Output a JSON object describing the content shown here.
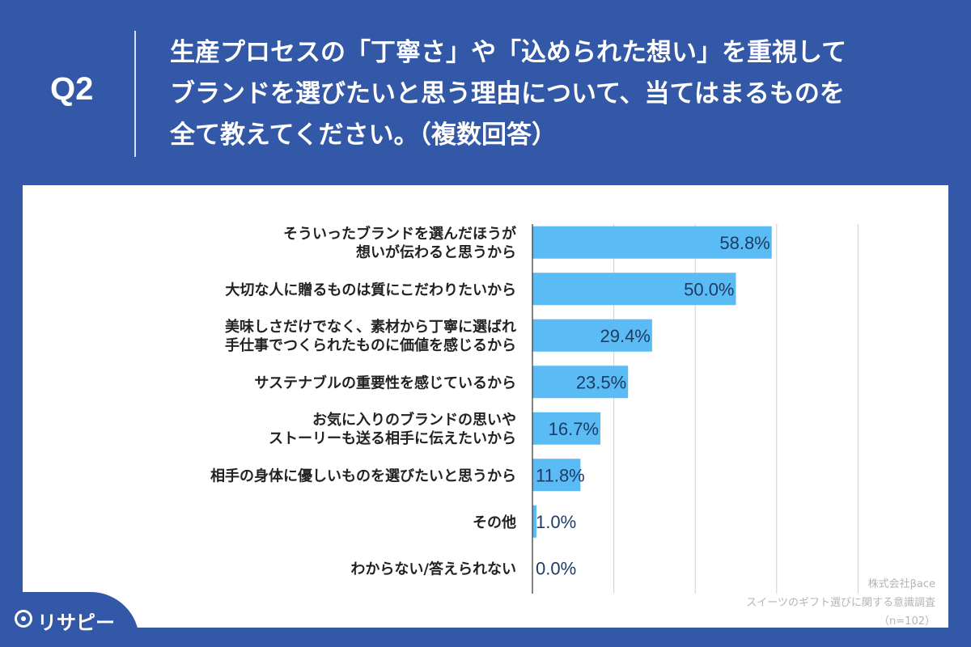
{
  "question": {
    "number": "Q2",
    "lines": [
      "生産プロセスの「丁寧さ」や「込められた想い」を重視して",
      "ブランドを選びたいと思う理由について、当てはまるものを",
      "全て教えてください。（複数回答）"
    ]
  },
  "colors": {
    "bar": "#5bbcf5",
    "header": "#3358a7",
    "grid": "#d0d0d0"
  },
  "chart_data": {
    "type": "bar",
    "orientation": "horizontal",
    "categories": [
      [
        "そういったブランドを選んだほうが",
        "想いが伝わると思うから"
      ],
      [
        "大切な人に贈るものは質にこだわりたいから"
      ],
      [
        "美味しさだけでなく、素材から丁寧に選ばれ",
        "手仕事でつくられたものに価値を感じるから"
      ],
      [
        "サステナブルの重要性を感じているから"
      ],
      [
        "お気に入りのブランドの思いや",
        "ストーリーも送る相手に伝えたいから"
      ],
      [
        "相手の身体に優しいものを選びたいと思うから"
      ],
      [
        "その他"
      ],
      [
        "わからない/答えられない"
      ]
    ],
    "values": [
      58.8,
      50.0,
      29.4,
      23.5,
      16.7,
      11.8,
      1.0,
      0.0
    ],
    "value_labels": [
      "58.8%",
      "50.0%",
      "29.4%",
      "23.5%",
      "16.7%",
      "11.8%",
      "1.0%",
      "0.0%"
    ],
    "xlim": [
      0,
      100
    ],
    "grid": true,
    "legend": false
  },
  "credit": {
    "company": "株式会社βace",
    "survey": "スイーツのギフト選びに関する意識調査",
    "sample": "（n=102）"
  },
  "logo": {
    "text": "リサピー"
  }
}
